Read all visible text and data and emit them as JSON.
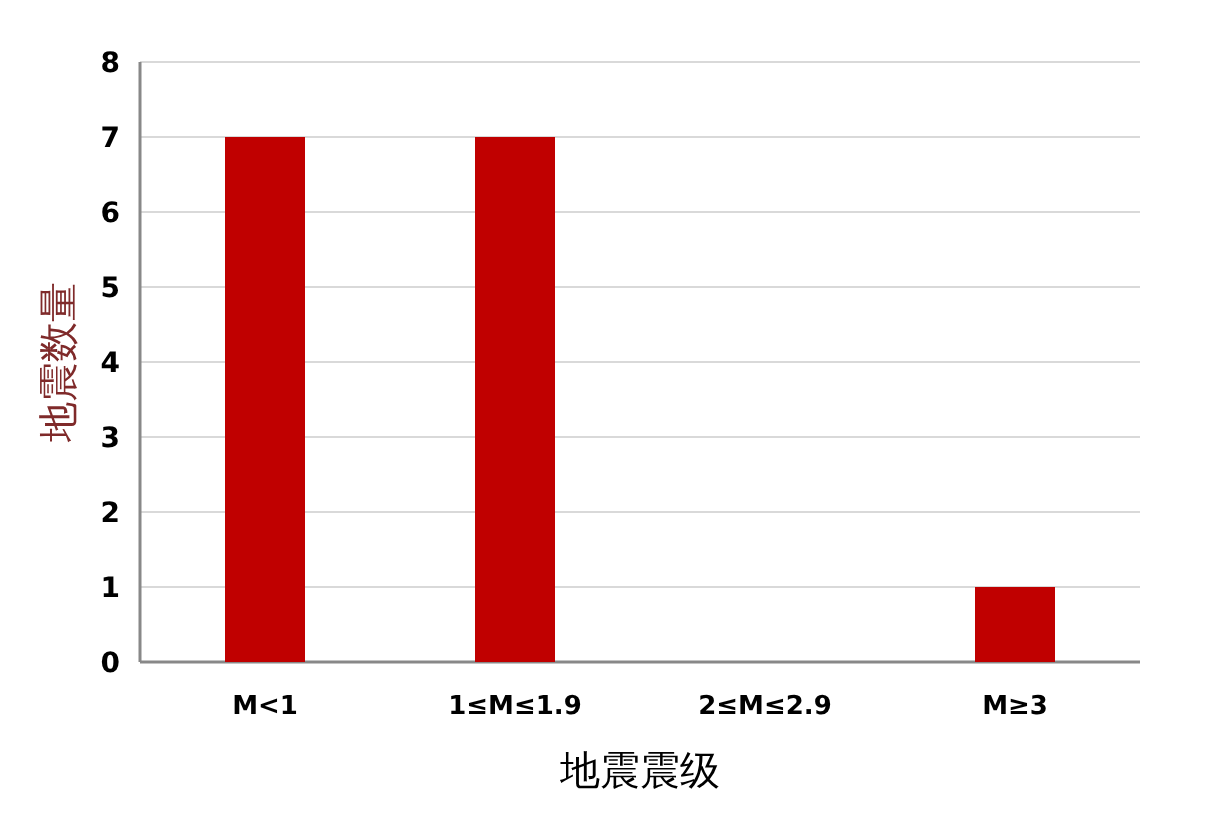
{
  "chart_data": {
    "type": "bar",
    "xlabel": "地震震级",
    "ylabel": "地震数量",
    "categories": [
      "M<1",
      "1≤M≤1.9",
      "2≤M≤2.9",
      "M≥3"
    ],
    "values": [
      7,
      7,
      0,
      1
    ],
    "color": "#c00000",
    "ylim": [
      0,
      8
    ],
    "yticks": [
      0,
      1,
      2,
      3,
      4,
      5,
      6,
      7,
      8
    ],
    "grid": "y"
  }
}
